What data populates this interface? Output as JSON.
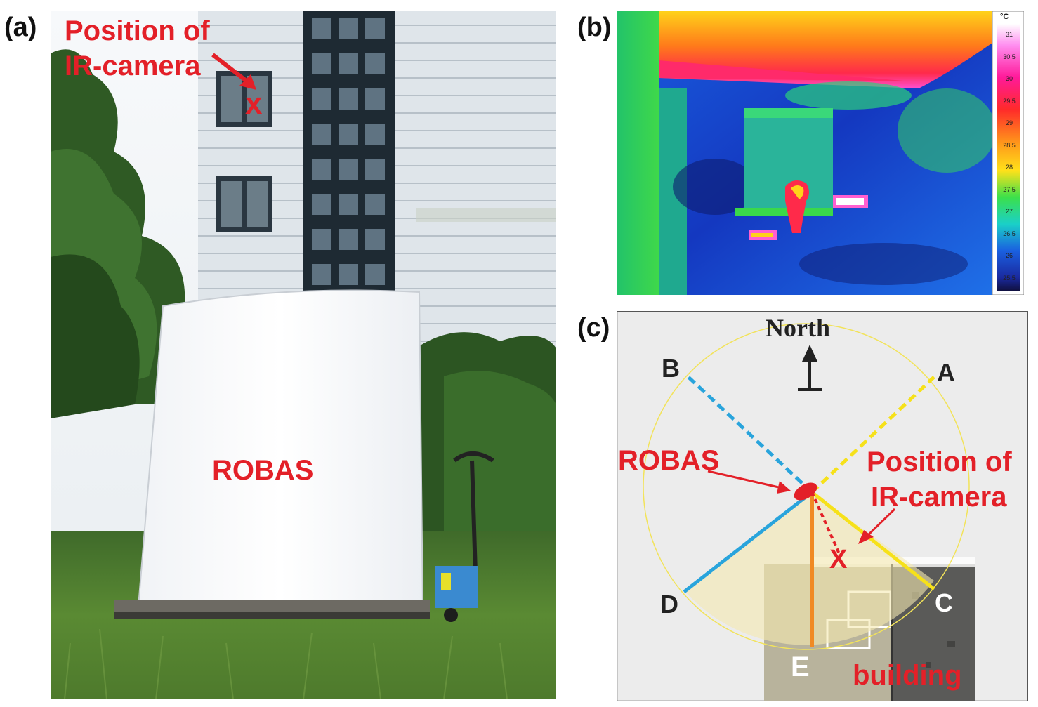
{
  "panels": {
    "a": {
      "label": "(a)",
      "annotation_line1": "Position of",
      "annotation_line2": "IR-camera",
      "camera_marker": "x",
      "object_label": "ROBAS"
    },
    "b": {
      "label": "(b)",
      "colorbar_unit": "°C",
      "colorbar_ticks": [
        "31",
        "30,5",
        "30",
        "29,5",
        "29",
        "28,5",
        "28",
        "27,5",
        "27",
        "26,5",
        "26",
        "25,5"
      ]
    },
    "c": {
      "label": "(c)",
      "north_label": "North",
      "points": {
        "A": "A",
        "B": "B",
        "C": "C",
        "D": "D",
        "E": "E"
      },
      "robas_label": "ROBAS",
      "camera_line1": "Position of",
      "camera_line2": "IR-camera",
      "building_label": "building",
      "camera_marker": "X"
    }
  },
  "colors": {
    "annotation_red": "#e32028",
    "line_blue_dashed": "#29a4dc",
    "line_yellow": "#f6e11a",
    "line_orange": "#f08a24",
    "sector_fill": "#f5e9b0"
  },
  "icons": [
    "north-arrow-icon",
    "camera-position-x-icon",
    "robas-marker-icon"
  ]
}
